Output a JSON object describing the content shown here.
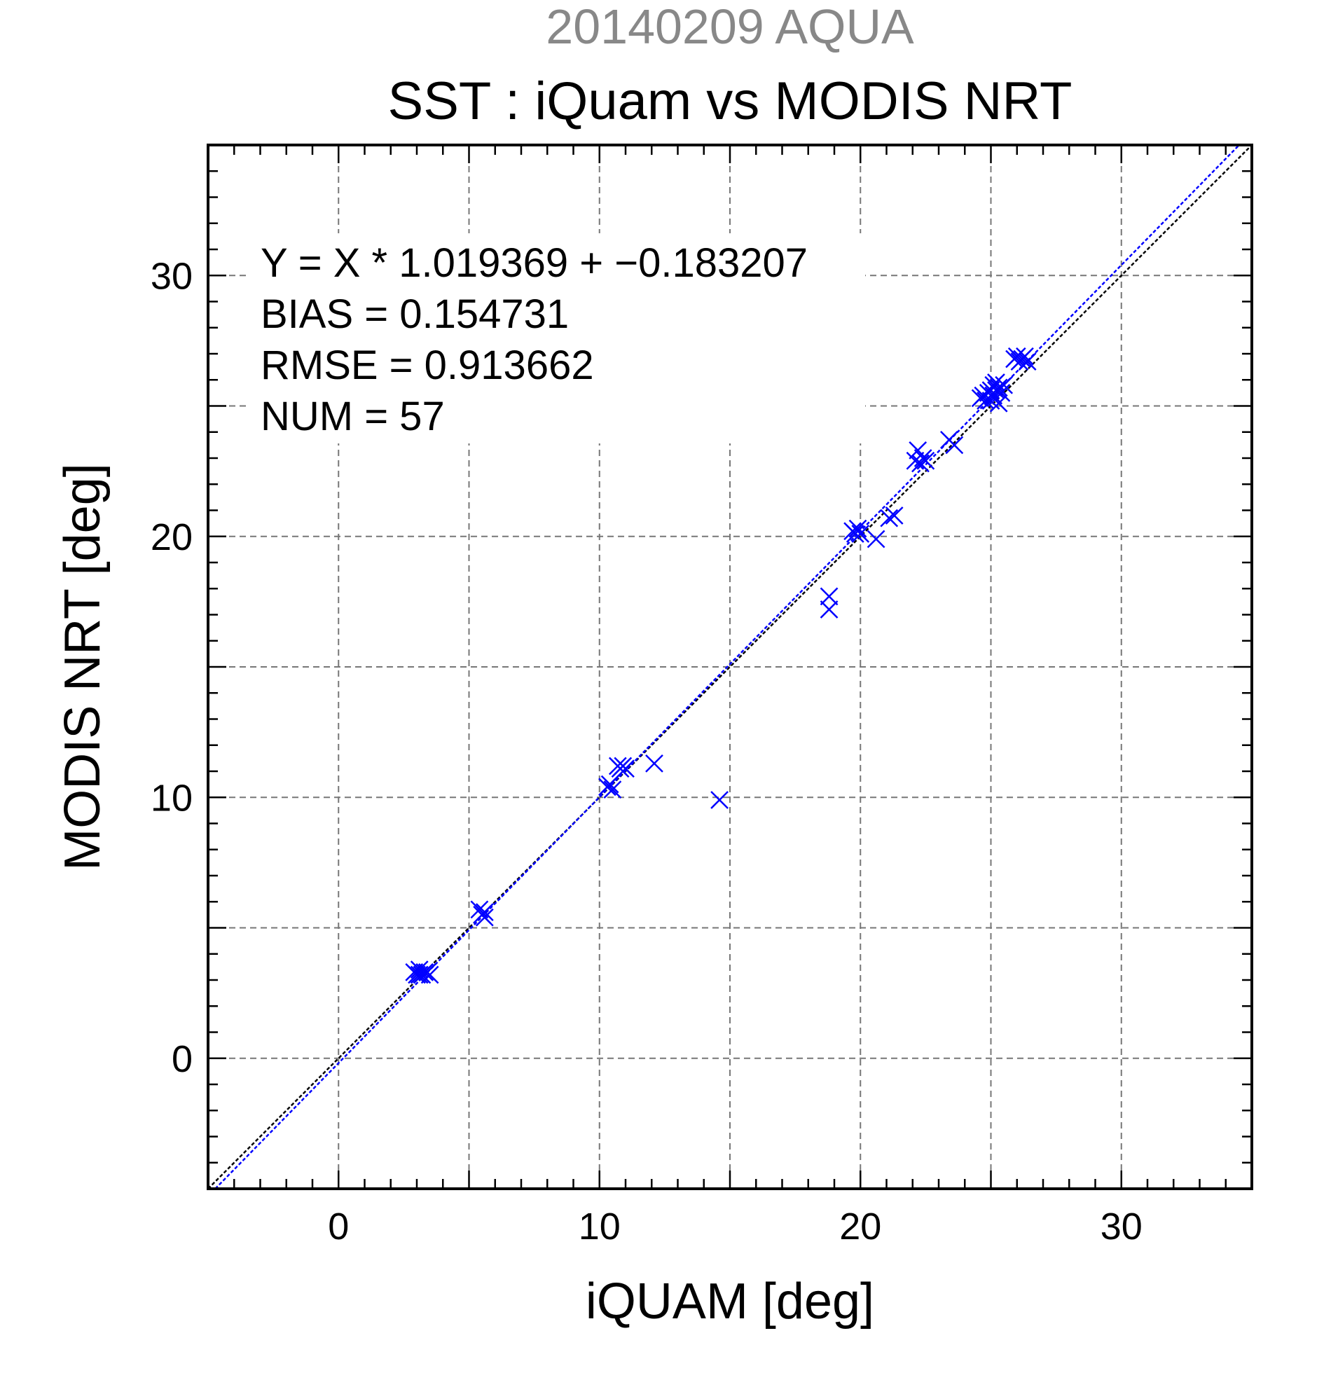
{
  "header": {
    "title_line1": "20140209 AQUA",
    "title_line2": "SST : iQuam vs MODIS NRT"
  },
  "stats": {
    "line1": "Y = X * 1.019369 + −0.183207",
    "line2": "BIAS = 0.154731",
    "line3": "RMSE = 0.913662",
    "line4": "NUM = 57"
  },
  "colors": {
    "title1": "#888888",
    "points": "#0000ff",
    "fit_line": "#0000ff",
    "identity_line": "#000000",
    "grid": "#777777"
  },
  "chart_data": {
    "type": "scatter",
    "title": "SST : iQuam vs MODIS NRT",
    "subtitle": "20140209 AQUA",
    "xlabel": "iQUAM [deg]",
    "ylabel": "MODIS NRT [deg]",
    "xlim": [
      -5,
      35
    ],
    "ylim": [
      -5,
      35
    ],
    "xticks": [
      0,
      10,
      20,
      30
    ],
    "yticks": [
      0,
      10,
      20,
      30
    ],
    "xtick_labels": [
      "0",
      "10",
      "20",
      "30"
    ],
    "ytick_labels": [
      "0",
      "10",
      "20",
      "30"
    ],
    "grid": true,
    "grid_step": 5,
    "minor_tick_step": 1,
    "marker": "x",
    "fit": {
      "slope": 1.019369,
      "intercept": -0.183207
    },
    "identity_line": true,
    "points": [
      {
        "x": 2.9,
        "y": 3.3
      },
      {
        "x": 3.0,
        "y": 3.2
      },
      {
        "x": 3.1,
        "y": 3.4
      },
      {
        "x": 3.2,
        "y": 3.2
      },
      {
        "x": 3.3,
        "y": 3.3
      },
      {
        "x": 3.4,
        "y": 3.3
      },
      {
        "x": 3.5,
        "y": 3.2
      },
      {
        "x": 3.1,
        "y": 3.2
      },
      {
        "x": 5.4,
        "y": 5.7
      },
      {
        "x": 5.5,
        "y": 5.5
      },
      {
        "x": 5.6,
        "y": 5.6
      },
      {
        "x": 5.6,
        "y": 5.4
      },
      {
        "x": 10.3,
        "y": 10.4
      },
      {
        "x": 10.4,
        "y": 10.5
      },
      {
        "x": 10.5,
        "y": 10.3
      },
      {
        "x": 10.7,
        "y": 11.2
      },
      {
        "x": 10.8,
        "y": 11.1
      },
      {
        "x": 10.9,
        "y": 11.2
      },
      {
        "x": 11.0,
        "y": 11.1
      },
      {
        "x": 12.1,
        "y": 11.3
      },
      {
        "x": 14.6,
        "y": 9.9
      },
      {
        "x": 18.8,
        "y": 17.7
      },
      {
        "x": 18.8,
        "y": 17.2
      },
      {
        "x": 19.7,
        "y": 20.2
      },
      {
        "x": 19.8,
        "y": 20.1
      },
      {
        "x": 19.9,
        "y": 20.3
      },
      {
        "x": 20.0,
        "y": 20.1
      },
      {
        "x": 20.6,
        "y": 19.9
      },
      {
        "x": 21.1,
        "y": 20.7
      },
      {
        "x": 21.3,
        "y": 20.8
      },
      {
        "x": 22.1,
        "y": 22.9
      },
      {
        "x": 22.2,
        "y": 23.3
      },
      {
        "x": 22.3,
        "y": 22.8
      },
      {
        "x": 22.4,
        "y": 23.0
      },
      {
        "x": 22.5,
        "y": 22.9
      },
      {
        "x": 23.4,
        "y": 23.7
      },
      {
        "x": 23.6,
        "y": 23.5
      },
      {
        "x": 24.6,
        "y": 25.3
      },
      {
        "x": 24.7,
        "y": 25.4
      },
      {
        "x": 24.8,
        "y": 25.2
      },
      {
        "x": 24.9,
        "y": 25.5
      },
      {
        "x": 25.0,
        "y": 25.6
      },
      {
        "x": 25.0,
        "y": 25.2
      },
      {
        "x": 25.1,
        "y": 25.8
      },
      {
        "x": 25.1,
        "y": 25.4
      },
      {
        "x": 25.2,
        "y": 25.9
      },
      {
        "x": 25.2,
        "y": 25.6
      },
      {
        "x": 25.3,
        "y": 25.7
      },
      {
        "x": 25.3,
        "y": 25.1
      },
      {
        "x": 25.4,
        "y": 25.5
      },
      {
        "x": 25.5,
        "y": 25.8
      },
      {
        "x": 25.9,
        "y": 26.8
      },
      {
        "x": 26.0,
        "y": 26.9
      },
      {
        "x": 26.1,
        "y": 26.7
      },
      {
        "x": 26.2,
        "y": 26.8
      },
      {
        "x": 26.3,
        "y": 26.9
      },
      {
        "x": 26.4,
        "y": 26.7
      }
    ]
  }
}
